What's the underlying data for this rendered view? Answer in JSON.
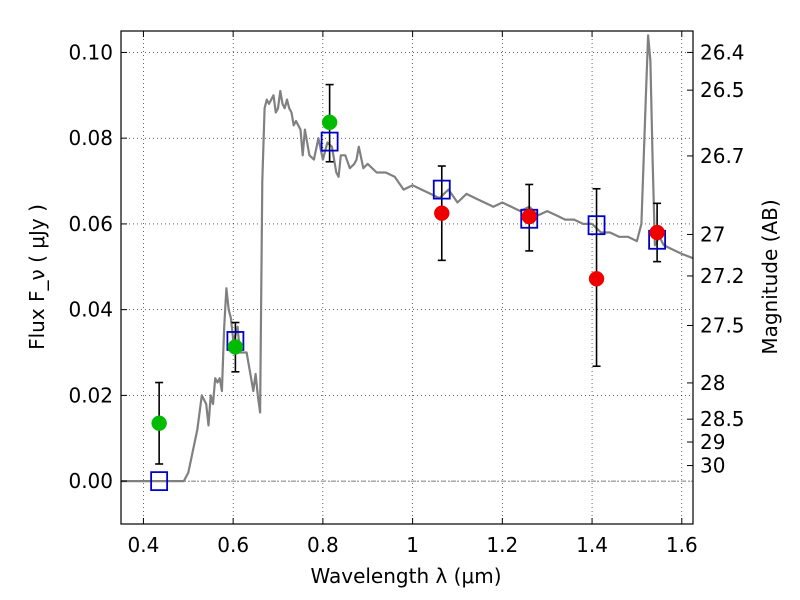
{
  "chart_data": {
    "type": "scatter",
    "xlabel": "Wavelength  λ (μm)",
    "ylabel": "Flux  F_ν  ( μJy )",
    "ylabel_right": "Magnitude (AB)",
    "xlim": [
      0.35,
      1.625
    ],
    "ylim": [
      -0.01,
      0.105
    ],
    "grid": true,
    "x_ticks": [
      0.4,
      0.6,
      0.8,
      1.0,
      1.2,
      1.4,
      1.6
    ],
    "x_tick_labels": [
      "0.4",
      "0.6",
      "0.8",
      "1",
      "1.2",
      "1.4",
      "1.6"
    ],
    "y_ticks": [
      0.0,
      0.02,
      0.04,
      0.06,
      0.08,
      0.1
    ],
    "y_tick_labels": [
      "0.00",
      "0.02",
      "0.04",
      "0.06",
      "0.08",
      "0.10"
    ],
    "mag_ticks": [
      {
        "label": "26.4",
        "value": 26.4
      },
      {
        "label": "26.5",
        "value": 26.5
      },
      {
        "label": "26.7",
        "value": 26.7
      },
      {
        "label": "27",
        "value": 27.0
      },
      {
        "label": "27.2",
        "value": 27.2
      },
      {
        "label": "27.5",
        "value": 27.5
      },
      {
        "label": "28",
        "value": 28.0
      },
      {
        "label": "28.5",
        "value": 28.5
      },
      {
        "label": "29",
        "value": 29.0
      },
      {
        "label": "30",
        "value": 30.0
      }
    ],
    "zero_line": 0.0,
    "model_spectrum": {
      "color": "#808080",
      "x": [
        0.35,
        0.49,
        0.5,
        0.52,
        0.53,
        0.54,
        0.545,
        0.55,
        0.555,
        0.56,
        0.565,
        0.57,
        0.575,
        0.58,
        0.585,
        0.59,
        0.595,
        0.6,
        0.605,
        0.61,
        0.615,
        0.62,
        0.63,
        0.64,
        0.645,
        0.65,
        0.655,
        0.66,
        0.665,
        0.67,
        0.675,
        0.68,
        0.69,
        0.695,
        0.7,
        0.705,
        0.71,
        0.715,
        0.72,
        0.725,
        0.73,
        0.735,
        0.74,
        0.75,
        0.755,
        0.76,
        0.77,
        0.78,
        0.79,
        0.8,
        0.81,
        0.82,
        0.83,
        0.835,
        0.84,
        0.85,
        0.86,
        0.87,
        0.875,
        0.88,
        0.89,
        0.9,
        0.92,
        0.94,
        0.96,
        0.98,
        1.0,
        1.02,
        1.04,
        1.06,
        1.08,
        1.1,
        1.12,
        1.14,
        1.16,
        1.18,
        1.2,
        1.22,
        1.24,
        1.26,
        1.28,
        1.3,
        1.32,
        1.34,
        1.36,
        1.38,
        1.4,
        1.42,
        1.44,
        1.46,
        1.48,
        1.5,
        1.51,
        1.52,
        1.525,
        1.53,
        1.535,
        1.54,
        1.55,
        1.56,
        1.58,
        1.6,
        1.625
      ],
      "y": [
        0.0,
        0.0,
        0.002,
        0.012,
        0.02,
        0.018,
        0.013,
        0.02,
        0.018,
        0.024,
        0.023,
        0.024,
        0.021,
        0.036,
        0.045,
        0.04,
        0.038,
        0.033,
        0.034,
        0.036,
        0.03,
        0.03,
        0.03,
        0.024,
        0.021,
        0.025,
        0.02,
        0.016,
        0.07,
        0.087,
        0.089,
        0.088,
        0.09,
        0.086,
        0.087,
        0.091,
        0.088,
        0.087,
        0.089,
        0.087,
        0.086,
        0.083,
        0.084,
        0.082,
        0.076,
        0.082,
        0.076,
        0.075,
        0.08,
        0.075,
        0.079,
        0.078,
        0.072,
        0.071,
        0.076,
        0.076,
        0.073,
        0.074,
        0.075,
        0.078,
        0.073,
        0.074,
        0.072,
        0.072,
        0.071,
        0.068,
        0.069,
        0.068,
        0.067,
        0.066,
        0.068,
        0.065,
        0.067,
        0.066,
        0.065,
        0.064,
        0.065,
        0.064,
        0.063,
        0.064,
        0.062,
        0.063,
        0.062,
        0.061,
        0.061,
        0.06,
        0.06,
        0.058,
        0.058,
        0.057,
        0.057,
        0.056,
        0.06,
        0.09,
        0.104,
        0.098,
        0.075,
        0.055,
        0.057,
        0.055,
        0.054,
        0.053,
        0.052
      ]
    },
    "series": [
      {
        "name": "",
        "marker": "open-square",
        "color": "#0000cc",
        "x": [
          0.435,
          0.605,
          0.815,
          1.065,
          1.26,
          1.41,
          1.545
        ],
        "y": [
          0.0,
          0.0327,
          0.0792,
          0.068,
          0.0612,
          0.0597,
          0.0563
        ]
      },
      {
        "name": "",
        "marker": "filled-circle",
        "color": "#00bb00",
        "x": [
          0.435,
          0.605,
          0.815
        ],
        "y": [
          0.0135,
          0.0313,
          0.0837
        ],
        "yerr_low": [
          0.004,
          0.0255,
          0.0745
        ],
        "yerr_high": [
          0.023,
          0.037,
          0.0925
        ]
      },
      {
        "name": "",
        "marker": "filled-circle",
        "color": "#ee0000",
        "x": [
          1.065,
          1.26,
          1.41,
          1.545
        ],
        "y": [
          0.0625,
          0.0617,
          0.0472,
          0.058
        ],
        "yerr_low": [
          0.0515,
          0.0537,
          0.0268,
          0.0512
        ],
        "yerr_high": [
          0.0735,
          0.0692,
          0.0682,
          0.0648
        ]
      }
    ]
  }
}
